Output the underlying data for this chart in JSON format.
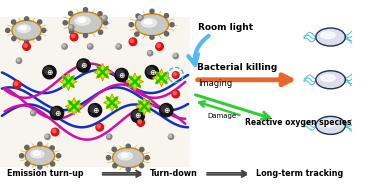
{
  "bg_color": "#ffffff",
  "labels": {
    "room_light": "Room light",
    "bacterial_killing": "Bacterial killing",
    "imaging": "Imaging",
    "reactive_oxygen": "Reactive oxygen species",
    "damage": "Damage",
    "emission_turnup": "Emission turn-up",
    "turndown": "Turn-down",
    "longterm": "Long-term tracking"
  },
  "arrow_colors": {
    "room_light": "#55bbee",
    "bacterial_killing": "#e8682a",
    "reactive_oxygen_down": "#33cc33",
    "damage": "#33cc33",
    "bottom": "#444444"
  },
  "colors": {
    "blue_fiber": "#1133bb",
    "magenta_fiber": "#cc11aa",
    "yellow_blob": "#dddd00",
    "orange_oval_border": "#cc8800",
    "dark_sphere": "#111111",
    "red_dot": "#dd1111",
    "gray_sphere": "#777777",
    "bacteria_dark": "#223355",
    "bacteria_cyan": "#33bbcc",
    "green_cross": "#00cc00"
  },
  "figsize": [
    3.71,
    1.89
  ],
  "dpi": 100
}
